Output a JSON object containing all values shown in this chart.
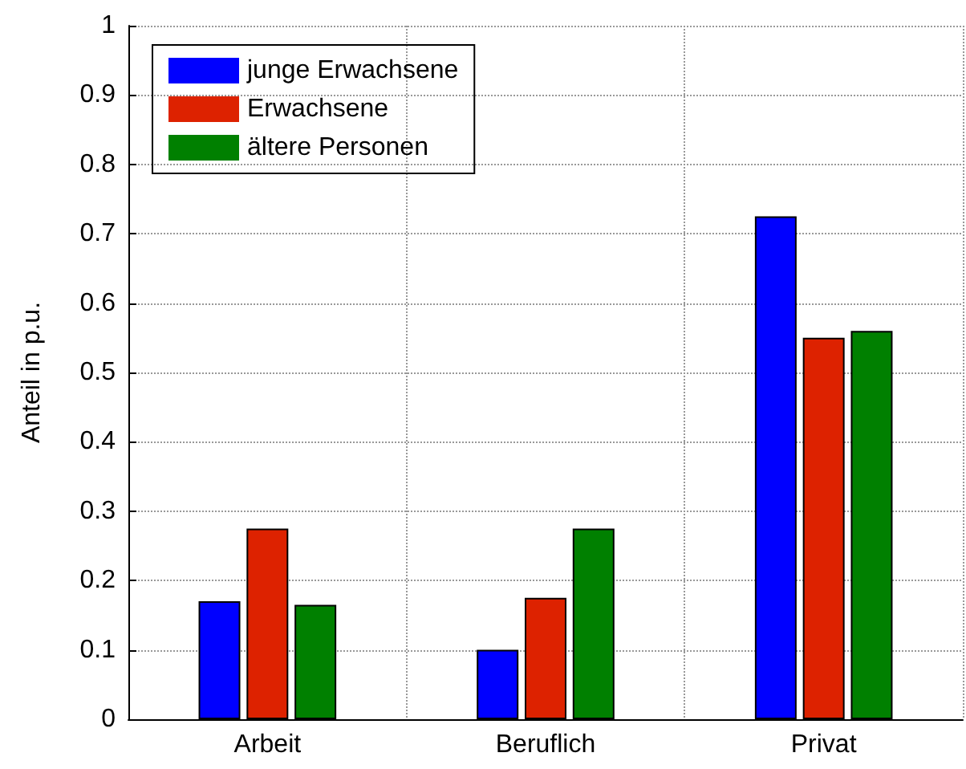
{
  "chart_data": {
    "type": "bar",
    "ylabel": "Anteil in p.u.",
    "categories": [
      "Arbeit",
      "Beruflich",
      "Privat"
    ],
    "series": [
      {
        "name": "junge Erwachsene",
        "color": "#0000ff",
        "values": [
          0.17,
          0.1,
          0.725
        ]
      },
      {
        "name": "Erwachsene",
        "color": "#dd2200",
        "values": [
          0.275,
          0.175,
          0.55
        ]
      },
      {
        "name": "ältere Personen",
        "color": "#008000",
        "values": [
          0.165,
          0.275,
          0.56
        ]
      }
    ],
    "ylim": [
      0,
      1
    ],
    "yticks": [
      0,
      0.1,
      0.2,
      0.3,
      0.4,
      0.5,
      0.6,
      0.7,
      0.8,
      0.9,
      1
    ],
    "grid": true,
    "legend": "top left"
  }
}
